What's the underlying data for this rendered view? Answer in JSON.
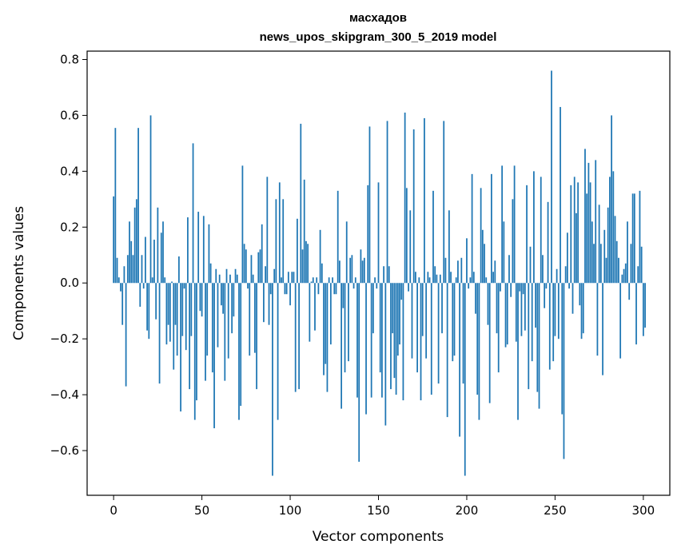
{
  "chart_data": {
    "type": "bar",
    "title": "масхадов",
    "subtitle": "news_upos_skipgram_300_5_2019 model",
    "xlabel": "Vector components",
    "ylabel": "Components values",
    "xlim": [
      -15,
      315
    ],
    "ylim": [
      -0.76,
      0.83
    ],
    "xticks": [
      0,
      50,
      100,
      150,
      200,
      250,
      300
    ],
    "yticks": [
      -0.6,
      -0.4,
      -0.2,
      0.0,
      0.2,
      0.4,
      0.6,
      0.8
    ],
    "ytick_labels": [
      "−0.6",
      "−0.4",
      "−0.2",
      "0.0",
      "0.2",
      "0.4",
      "0.6",
      "0.8"
    ],
    "bar_color": "#1f77b4",
    "grid": false,
    "x_start": 0,
    "values": [
      0.31,
      0.555,
      0.09,
      0.02,
      -0.03,
      -0.15,
      0.06,
      -0.37,
      0.1,
      0.22,
      0.15,
      0.1,
      0.27,
      0.3,
      0.555,
      -0.085,
      0.1,
      -0.02,
      0.165,
      -0.17,
      -0.2,
      0.6,
      0.02,
      0.155,
      -0.13,
      0.27,
      -0.36,
      0.18,
      0.22,
      0.02,
      -0.22,
      -0.15,
      -0.21,
      0.005,
      -0.31,
      -0.15,
      -0.26,
      0.095,
      -0.46,
      -0.19,
      -0.02,
      -0.24,
      0.235,
      -0.38,
      -0.19,
      0.5,
      -0.49,
      -0.42,
      0.255,
      -0.1,
      -0.12,
      0.24,
      -0.35,
      -0.26,
      0.21,
      0.07,
      -0.32,
      -0.52,
      0.05,
      -0.23,
      0.03,
      -0.08,
      -0.11,
      -0.35,
      0.05,
      -0.27,
      0.03,
      -0.18,
      -0.12,
      0.05,
      0.03,
      -0.49,
      -0.44,
      0.42,
      0.14,
      0.12,
      -0.02,
      -0.26,
      0.1,
      0.03,
      -0.25,
      -0.38,
      0.11,
      0.12,
      0.21,
      -0.14,
      0.06,
      0.38,
      -0.15,
      -0.04,
      -0.69,
      0.05,
      0.3,
      -0.49,
      0.36,
      0.02,
      0.3,
      -0.04,
      -0.04,
      0.04,
      -0.08,
      0.04,
      0.04,
      -0.39,
      0.23,
      -0.38,
      0.57,
      0.12,
      0.37,
      0.15,
      0.14,
      -0.21,
      0.005,
      0.02,
      -0.17,
      0.02,
      -0.04,
      0.19,
      0.07,
      -0.33,
      -0.29,
      -0.39,
      0.02,
      -0.22,
      0.02,
      -0.04,
      -0.04,
      0.33,
      0.08,
      -0.45,
      -0.09,
      -0.32,
      0.22,
      -0.28,
      0.09,
      0.1,
      -0.02,
      0.02,
      -0.41,
      -0.64,
      0.12,
      0.08,
      0.09,
      -0.47,
      0.35,
      0.56,
      -0.41,
      -0.18,
      0.02,
      -0.02,
      0.36,
      -0.32,
      -0.41,
      0.06,
      -0.51,
      0.58,
      0.06,
      -0.38,
      -0.18,
      -0.34,
      -0.4,
      -0.26,
      -0.22,
      -0.06,
      -0.42,
      0.61,
      0.34,
      -0.03,
      0.26,
      -0.27,
      0.55,
      0.04,
      -0.32,
      0.02,
      -0.42,
      -0.19,
      0.59,
      -0.27,
      0.04,
      0.02,
      -0.4,
      0.33,
      0.06,
      0.03,
      -0.36,
      0.03,
      -0.18,
      0.58,
      0.09,
      -0.48,
      0.26,
      0.04,
      -0.28,
      -0.26,
      0.02,
      0.08,
      -0.55,
      0.09,
      -0.36,
      -0.69,
      0.16,
      -0.02,
      0.02,
      0.39,
      0.04,
      -0.11,
      -0.4,
      -0.49,
      0.34,
      0.19,
      0.14,
      0.02,
      -0.15,
      -0.43,
      0.39,
      0.04,
      0.08,
      -0.18,
      -0.32,
      -0.03,
      0.42,
      0.22,
      -0.23,
      -0.22,
      0.1,
      -0.05,
      0.3,
      0.42,
      -0.21,
      -0.49,
      -0.03,
      -0.19,
      -0.04,
      -0.17,
      0.35,
      -0.38,
      0.13,
      -0.28,
      0.4,
      -0.16,
      -0.39,
      -0.45,
      0.38,
      0.1,
      -0.09,
      -0.02,
      0.29,
      -0.31,
      0.76,
      -0.28,
      -0.19,
      0.05,
      -0.2,
      0.63,
      -0.47,
      -0.63,
      0.06,
      0.18,
      -0.02,
      0.35,
      -0.11,
      0.38,
      0.25,
      0.36,
      -0.08,
      -0.2,
      -0.18,
      0.48,
      0.32,
      0.43,
      0.36,
      0.22,
      0.14,
      0.44,
      -0.26,
      0.28,
      0.14,
      -0.33,
      0.19,
      0.09,
      0.27,
      0.38,
      0.6,
      0.4,
      0.24,
      0.15,
      0.09,
      -0.27,
      0.03,
      0.05,
      0.07,
      0.22,
      -0.06,
      0.14,
      0.32,
      0.32,
      -0.22,
      0.06,
      0.33,
      0.13,
      -0.19,
      -0.16
    ]
  }
}
